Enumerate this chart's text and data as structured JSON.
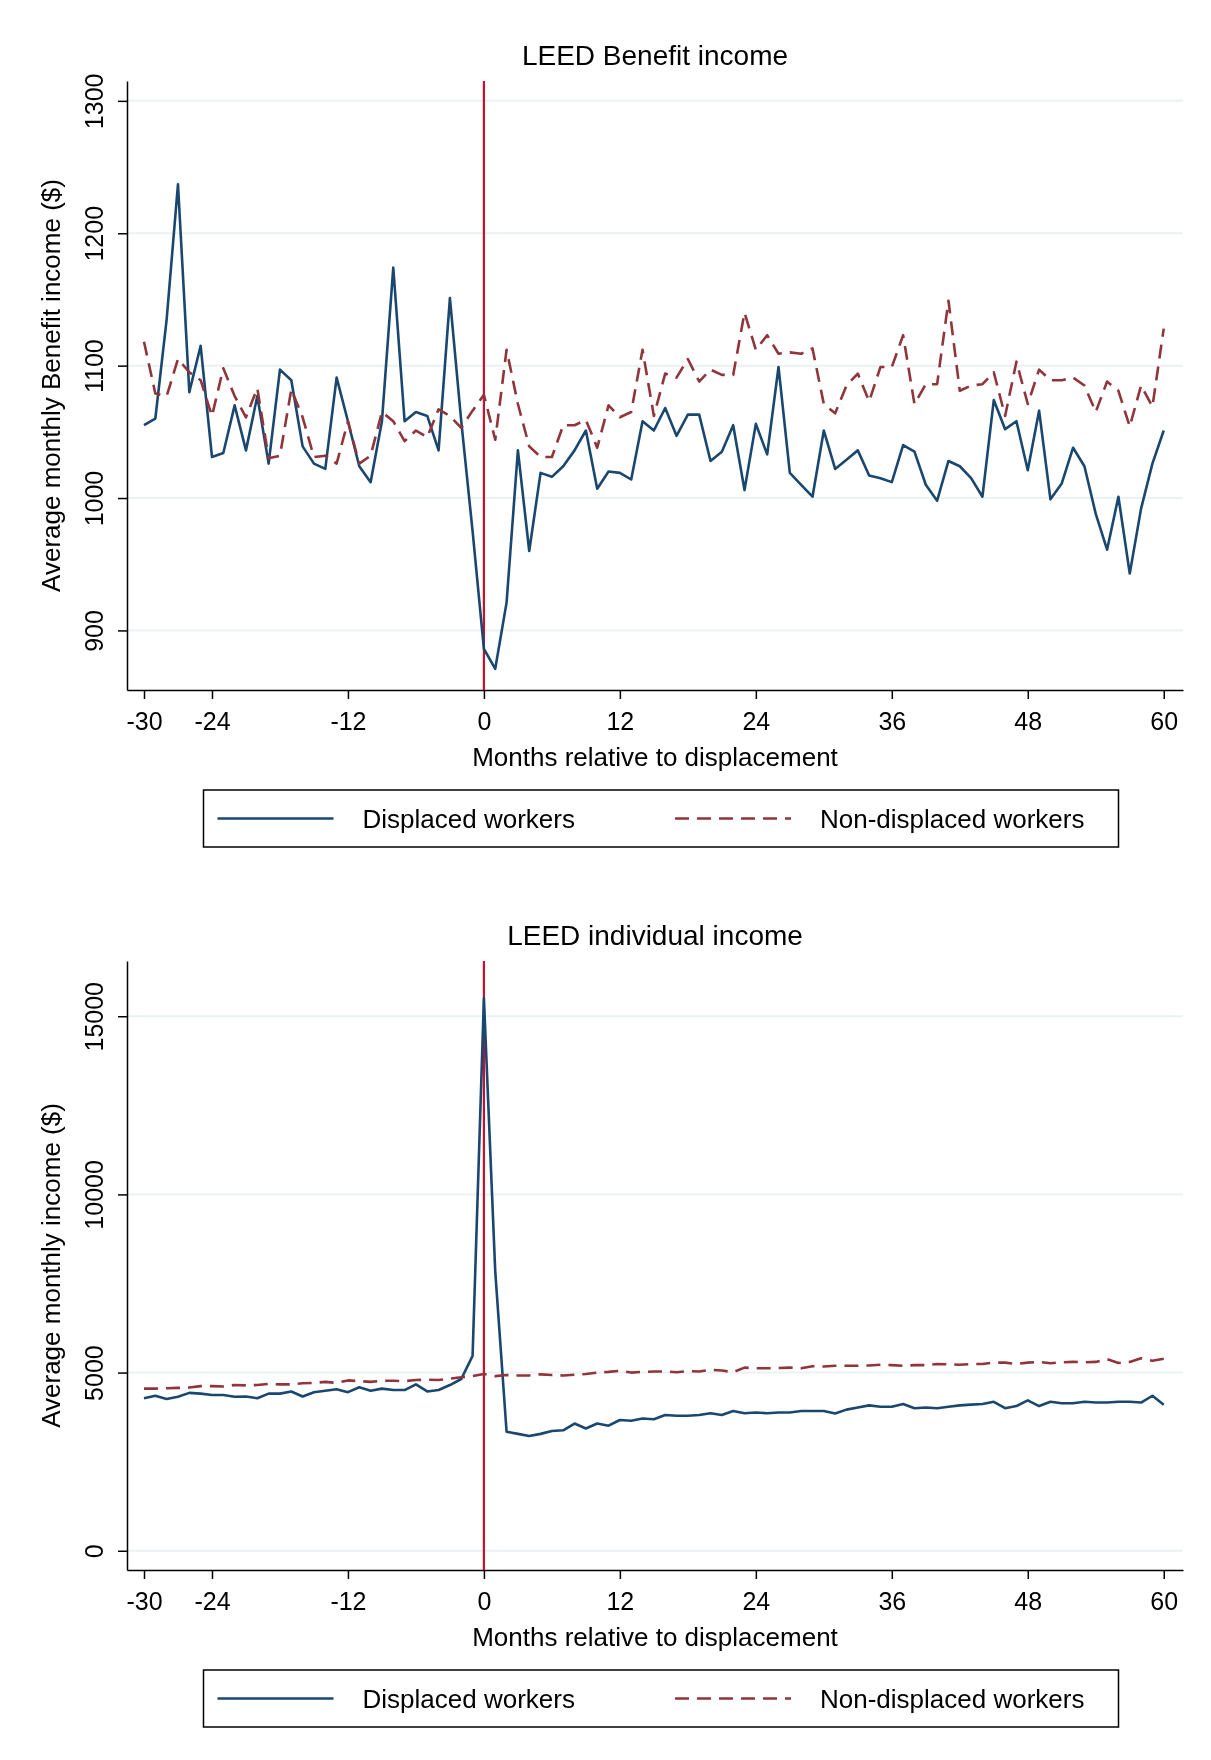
{
  "chart_data": [
    {
      "type": "line",
      "title": "LEED Benefit income",
      "xlabel": "Months relative to displacement",
      "ylabel": "Average monthly Benefit income ($)",
      "x": [
        -30,
        -29,
        -28,
        -27,
        -26,
        -25,
        -24,
        -23,
        -22,
        -21,
        -20,
        -19,
        -18,
        -17,
        -16,
        -15,
        -14,
        -13,
        -12,
        -11,
        -10,
        -9,
        -8,
        -7,
        -6,
        -5,
        -4,
        -3,
        -2,
        -1,
        0,
        1,
        2,
        3,
        4,
        5,
        6,
        7,
        8,
        9,
        10,
        11,
        12,
        13,
        14,
        15,
        16,
        17,
        18,
        19,
        20,
        21,
        22,
        23,
        24,
        25,
        26,
        27,
        28,
        29,
        30,
        31,
        32,
        33,
        34,
        35,
        36,
        37,
        38,
        39,
        40,
        41,
        42,
        43,
        44,
        45,
        46,
        47,
        48,
        49,
        50,
        51,
        52,
        53,
        54,
        55,
        56,
        57,
        58,
        59,
        60
      ],
      "xlim": [
        -31.5,
        61.7
      ],
      "xticks": [
        -30,
        -24,
        -12,
        0,
        12,
        24,
        36,
        48,
        60
      ],
      "ylim": [
        855,
        1315
      ],
      "yticks": [
        900,
        1000,
        1100,
        1200,
        1300
      ],
      "grid": "y",
      "legend": "bottom",
      "ref_lines": [
        {
          "axis": "x",
          "value": 0,
          "color": "#c8102e"
        }
      ],
      "series": [
        {
          "name": "Displaced workers",
          "color": "#1a476f",
          "line_style": "solid",
          "values": [
            1055,
            1060,
            1135,
            1237,
            1080,
            1115,
            1031,
            1034,
            1070,
            1036,
            1077,
            1026,
            1097,
            1089,
            1039,
            1026,
            1022,
            1091,
            1058,
            1024,
            1012,
            1058,
            1174,
            1058,
            1065,
            1062,
            1036,
            1151,
            1058,
            975,
            886,
            871,
            921,
            1036,
            960,
            1019,
            1016,
            1024,
            1036,
            1051,
            1007,
            1020,
            1019,
            1014,
            1058,
            1051,
            1068,
            1047,
            1063,
            1063,
            1028,
            1035,
            1055,
            1006,
            1056,
            1033,
            1099,
            1019,
            1010,
            1001,
            1051,
            1022,
            1029,
            1036,
            1017,
            1015,
            1012,
            1040,
            1035,
            1010,
            998,
            1028,
            1024,
            1015,
            1001,
            1074,
            1052,
            1058,
            1021,
            1066,
            999,
            1011,
            1038,
            1024,
            988,
            961,
            1001,
            943,
            992,
            1026,
            1051
          ]
        },
        {
          "name": "Non-displaced workers",
          "color": "#90353b",
          "line_style": "dashed",
          "values": [
            1118,
            1079,
            1077,
            1105,
            1095,
            1089,
            1062,
            1098,
            1077,
            1061,
            1083,
            1030,
            1032,
            1082,
            1061,
            1031,
            1032,
            1026,
            1058,
            1026,
            1032,
            1065,
            1058,
            1043,
            1051,
            1046,
            1067,
            1062,
            1053,
            1066,
            1078,
            1044,
            1112,
            1071,
            1039,
            1031,
            1031,
            1055,
            1055,
            1059,
            1038,
            1070,
            1061,
            1065,
            1112,
            1062,
            1094,
            1091,
            1105,
            1088,
            1097,
            1093,
            1093,
            1140,
            1112,
            1123,
            1109,
            1110,
            1109,
            1113,
            1071,
            1064,
            1085,
            1094,
            1073,
            1099,
            1099,
            1123,
            1071,
            1086,
            1086,
            1149,
            1081,
            1085,
            1086,
            1095,
            1062,
            1103,
            1071,
            1097,
            1089,
            1089,
            1091,
            1085,
            1065,
            1088,
            1081,
            1054,
            1085,
            1069,
            1128
          ]
        }
      ]
    },
    {
      "type": "line",
      "title": "LEED individual income",
      "xlabel": "Months relative to displacement",
      "ylabel": "Average monthly income ($)",
      "x": [
        -30,
        -29,
        -28,
        -27,
        -26,
        -25,
        -24,
        -23,
        -22,
        -21,
        -20,
        -19,
        -18,
        -17,
        -16,
        -15,
        -14,
        -13,
        -12,
        -11,
        -10,
        -9,
        -8,
        -7,
        -6,
        -5,
        -4,
        -3,
        -2,
        -1,
        0,
        1,
        2,
        3,
        4,
        5,
        6,
        7,
        8,
        9,
        10,
        11,
        12,
        13,
        14,
        15,
        16,
        17,
        18,
        19,
        20,
        21,
        22,
        23,
        24,
        25,
        26,
        27,
        28,
        29,
        30,
        31,
        32,
        33,
        34,
        35,
        36,
        37,
        38,
        39,
        40,
        41,
        42,
        43,
        44,
        45,
        46,
        47,
        48,
        49,
        50,
        51,
        52,
        53,
        54,
        55,
        56,
        57,
        58,
        59,
        60
      ],
      "xlim": [
        -31.5,
        61.7
      ],
      "xticks": [
        -30,
        -24,
        -12,
        0,
        12,
        24,
        36,
        48,
        60
      ],
      "ylim": [
        -540,
        16550
      ],
      "yticks": [
        0,
        5000,
        10000,
        15000
      ],
      "grid": "y",
      "legend": "bottom",
      "ref_lines": [
        {
          "axis": "x",
          "value": 0,
          "color": "#c8102e"
        }
      ],
      "series": [
        {
          "name": "Displaced workers",
          "color": "#1a476f",
          "line_style": "solid",
          "values": [
            4280,
            4350,
            4260,
            4320,
            4430,
            4410,
            4370,
            4370,
            4320,
            4330,
            4280,
            4410,
            4410,
            4470,
            4330,
            4450,
            4490,
            4530,
            4450,
            4590,
            4490,
            4550,
            4510,
            4510,
            4670,
            4470,
            4510,
            4650,
            4820,
            5470,
            15500,
            7840,
            3340,
            3280,
            3220,
            3280,
            3360,
            3380,
            3570,
            3430,
            3570,
            3510,
            3670,
            3650,
            3710,
            3690,
            3810,
            3790,
            3790,
            3810,
            3860,
            3810,
            3920,
            3860,
            3880,
            3860,
            3880,
            3880,
            3920,
            3920,
            3920,
            3850,
            3960,
            4020,
            4080,
            4040,
            4040,
            4120,
            4000,
            4020,
            4000,
            4040,
            4080,
            4100,
            4120,
            4180,
            4000,
            4060,
            4220,
            4060,
            4180,
            4140,
            4140,
            4180,
            4160,
            4160,
            4180,
            4180,
            4160,
            4350,
            4100
          ]
        },
        {
          "name": "Non-displaced workers",
          "color": "#90353b",
          "line_style": "dashed",
          "values": [
            4550,
            4550,
            4560,
            4570,
            4580,
            4620,
            4620,
            4610,
            4650,
            4640,
            4650,
            4680,
            4670,
            4670,
            4700,
            4710,
            4740,
            4710,
            4780,
            4760,
            4740,
            4770,
            4770,
            4760,
            4790,
            4800,
            4790,
            4830,
            4870,
            4900,
            4960,
            4900,
            4930,
            4920,
            4920,
            4950,
            4930,
            4920,
            4940,
            4960,
            5000,
            5020,
            5050,
            5000,
            5020,
            5030,
            5030,
            5010,
            5040,
            5030,
            5080,
            5060,
            5010,
            5140,
            5120,
            5120,
            5130,
            5140,
            5120,
            5180,
            5170,
            5190,
            5190,
            5190,
            5200,
            5220,
            5210,
            5190,
            5210,
            5210,
            5240,
            5230,
            5220,
            5240,
            5240,
            5280,
            5280,
            5240,
            5280,
            5300,
            5260,
            5290,
            5300,
            5290,
            5300,
            5380,
            5270,
            5300,
            5400,
            5330,
            5390
          ]
        }
      ]
    }
  ]
}
